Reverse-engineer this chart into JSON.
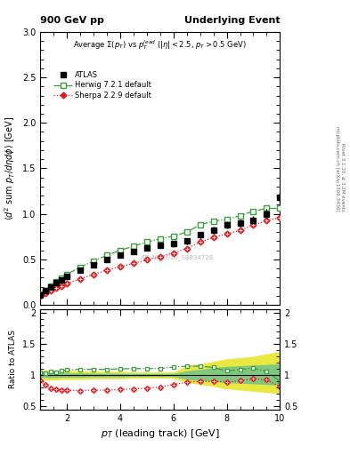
{
  "title_left": "900 GeV pp",
  "title_right": "Underlying Event",
  "subtitle": "Average $\\Sigma(p_T)$ vs $p_T^{lead}$ ($|\\eta| < 2.5$, $p_T > 0.5$ GeV)",
  "watermark": "ATLAS_2010_S8894728",
  "right_label": "Rivet 3.1.10, ≥ 3.2M events\nmcplots.cern.ch [arXiv:1306.3436]",
  "xlabel": "$p_T$ (leading track) [GeV]",
  "ylabel": "$\\langle d^2$ sum $p_T/d\\eta d\\phi\\rangle$ [GeV]",
  "ylabel_ratio": "Ratio to ATLAS",
  "xlim": [
    1.0,
    10.0
  ],
  "ylim": [
    0.0,
    3.0
  ],
  "ylim_ratio": [
    0.45,
    2.05
  ],
  "atlas_x": [
    1.0,
    1.2,
    1.4,
    1.6,
    1.8,
    2.0,
    2.5,
    3.0,
    3.5,
    4.0,
    4.5,
    5.0,
    5.5,
    6.0,
    6.5,
    7.0,
    7.5,
    8.0,
    8.5,
    9.0,
    9.5,
    10.0
  ],
  "atlas_y": [
    0.11,
    0.155,
    0.195,
    0.24,
    0.275,
    0.31,
    0.38,
    0.44,
    0.5,
    0.545,
    0.585,
    0.625,
    0.655,
    0.67,
    0.7,
    0.77,
    0.82,
    0.88,
    0.9,
    0.93,
    1.0,
    1.18
  ],
  "atlas_yerr": [
    0.01,
    0.012,
    0.013,
    0.014,
    0.015,
    0.016,
    0.018,
    0.02,
    0.022,
    0.024,
    0.026,
    0.028,
    0.029,
    0.03,
    0.031,
    0.033,
    0.035,
    0.038,
    0.04,
    0.043,
    0.055,
    0.065
  ],
  "herwig_x": [
    1.0,
    1.2,
    1.4,
    1.6,
    1.8,
    2.0,
    2.5,
    3.0,
    3.5,
    4.0,
    4.5,
    5.0,
    5.5,
    6.0,
    6.5,
    7.0,
    7.5,
    8.0,
    8.5,
    9.0,
    9.5,
    10.0
  ],
  "herwig_y": [
    0.115,
    0.16,
    0.205,
    0.25,
    0.295,
    0.335,
    0.415,
    0.48,
    0.545,
    0.6,
    0.645,
    0.69,
    0.725,
    0.755,
    0.8,
    0.88,
    0.92,
    0.94,
    0.98,
    1.03,
    1.06,
    1.06
  ],
  "sherpa_x": [
    1.0,
    1.2,
    1.4,
    1.6,
    1.8,
    2.0,
    2.5,
    3.0,
    3.5,
    4.0,
    4.5,
    5.0,
    5.5,
    6.0,
    6.5,
    7.0,
    7.5,
    8.0,
    8.5,
    9.0,
    9.5,
    10.0
  ],
  "sherpa_y": [
    0.1,
    0.13,
    0.155,
    0.185,
    0.21,
    0.235,
    0.285,
    0.335,
    0.38,
    0.42,
    0.455,
    0.495,
    0.53,
    0.57,
    0.62,
    0.69,
    0.74,
    0.78,
    0.82,
    0.875,
    0.925,
    0.96
  ],
  "herwig_color": "#3a9e3a",
  "sherpa_color": "#e41a1c",
  "band_green": "#80c880",
  "band_yellow": "#e8e840",
  "ratio_herwig": [
    1.045,
    1.032,
    1.051,
    1.042,
    1.073,
    1.081,
    1.092,
    1.091,
    1.09,
    1.101,
    1.103,
    1.104,
    1.107,
    1.127,
    1.143,
    1.143,
    1.122,
    1.068,
    1.089,
    1.108,
    1.06,
    0.898
  ],
  "ratio_sherpa": [
    0.909,
    0.839,
    0.795,
    0.771,
    0.764,
    0.758,
    0.75,
    0.761,
    0.76,
    0.771,
    0.778,
    0.792,
    0.809,
    0.851,
    0.886,
    0.896,
    0.902,
    0.886,
    0.911,
    0.941,
    0.925,
    0.814
  ],
  "band_yellow_lo": [
    0.92,
    0.92,
    0.92,
    0.92,
    0.93,
    0.93,
    0.93,
    0.94,
    0.94,
    0.94,
    0.95,
    0.95,
    0.95,
    0.95,
    0.88,
    0.85,
    0.82,
    0.78,
    0.76,
    0.74,
    0.72,
    0.7
  ],
  "band_yellow_hi": [
    1.08,
    1.08,
    1.08,
    1.08,
    1.07,
    1.07,
    1.07,
    1.06,
    1.06,
    1.06,
    1.05,
    1.05,
    1.05,
    1.05,
    1.15,
    1.18,
    1.22,
    1.26,
    1.28,
    1.3,
    1.34,
    1.38
  ],
  "band_green_lo": [
    0.96,
    0.96,
    0.96,
    0.96,
    0.965,
    0.965,
    0.965,
    0.97,
    0.97,
    0.97,
    0.975,
    0.975,
    0.975,
    0.975,
    0.93,
    0.91,
    0.9,
    0.88,
    0.87,
    0.86,
    0.85,
    0.84
  ],
  "band_green_hi": [
    1.04,
    1.04,
    1.04,
    1.04,
    1.035,
    1.035,
    1.035,
    1.03,
    1.03,
    1.03,
    1.025,
    1.025,
    1.025,
    1.025,
    1.07,
    1.09,
    1.12,
    1.14,
    1.15,
    1.16,
    1.17,
    1.18
  ]
}
